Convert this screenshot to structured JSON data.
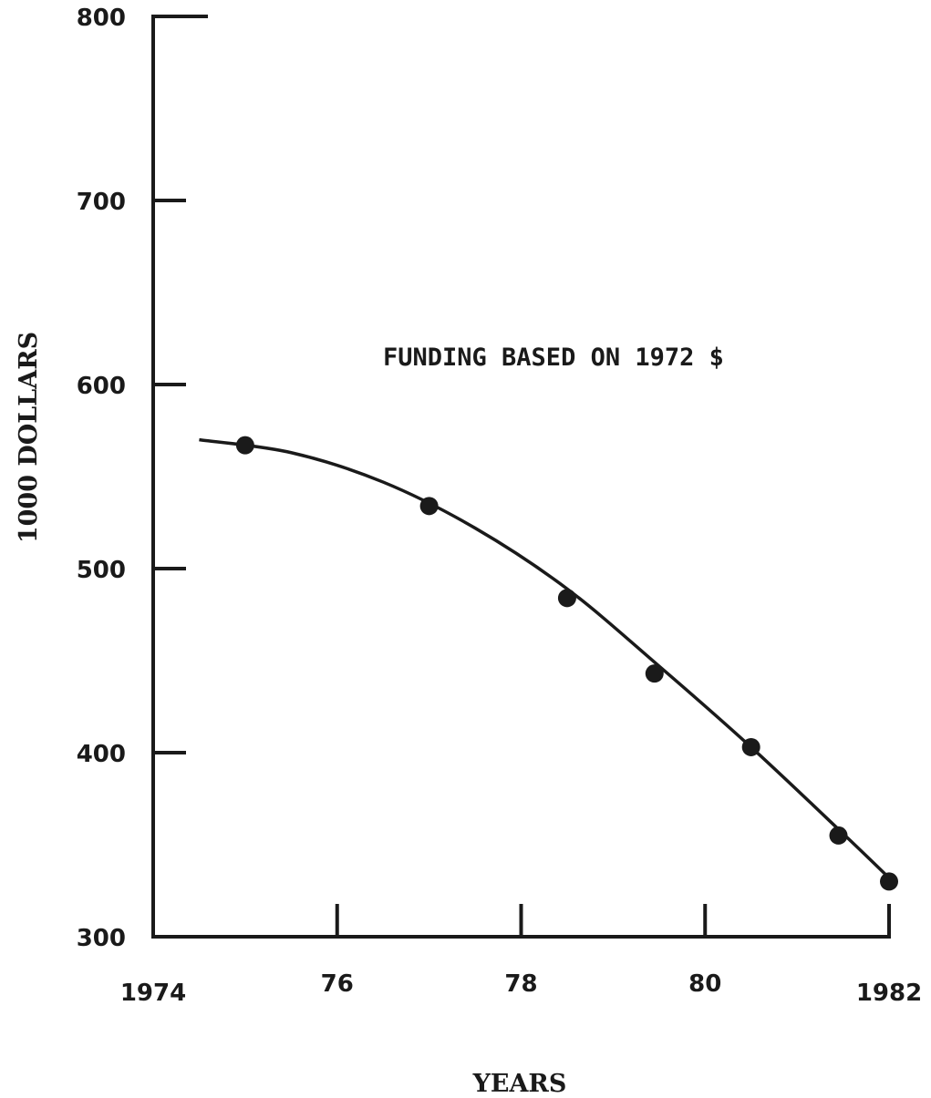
{
  "chart_data": {
    "type": "line",
    "title": "",
    "annotation": "FUNDING BASED ON 1972 $",
    "xlabel": "YEARS",
    "ylabel": "1000 DOLLARS",
    "xlim": [
      1974,
      1982
    ],
    "ylim": [
      300,
      800
    ],
    "x_ticks": [
      1974,
      1976,
      1978,
      1980,
      1982
    ],
    "x_tick_labels": [
      "1974",
      "76",
      "78",
      "80",
      "1982"
    ],
    "y_ticks": [
      300,
      400,
      500,
      600,
      700,
      800
    ],
    "y_tick_labels": [
      "300",
      "400",
      "500",
      "600",
      "700",
      "800"
    ],
    "grid": false,
    "series": [
      {
        "points": [
          {
            "x": 1975.0,
            "y": 567
          },
          {
            "x": 1977.0,
            "y": 534
          },
          {
            "x": 1978.5,
            "y": 484
          },
          {
            "x": 1979.45,
            "y": 443
          },
          {
            "x": 1980.5,
            "y": 403
          },
          {
            "x": 1981.45,
            "y": 355
          },
          {
            "x": 1982.0,
            "y": 330
          }
        ],
        "trend": [
          {
            "x": 1974.5,
            "y": 570
          },
          {
            "x": 1975.5,
            "y": 563
          },
          {
            "x": 1976.5,
            "y": 547
          },
          {
            "x": 1977.5,
            "y": 522
          },
          {
            "x": 1978.5,
            "y": 489
          },
          {
            "x": 1979.5,
            "y": 447
          },
          {
            "x": 1980.5,
            "y": 403
          },
          {
            "x": 1981.5,
            "y": 356
          },
          {
            "x": 1982.0,
            "y": 332
          }
        ]
      }
    ]
  }
}
